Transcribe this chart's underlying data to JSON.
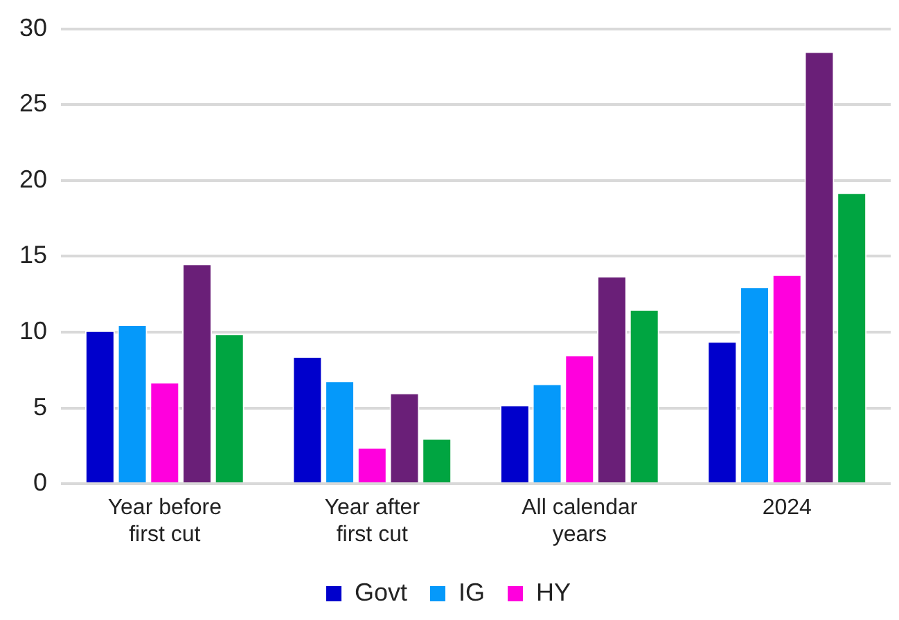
{
  "chart_data": {
    "type": "bar",
    "categories": [
      "Year before first cut",
      "Year after first cut",
      "All calendar years",
      "2024"
    ],
    "series": [
      {
        "name": "Govt",
        "color": "#0000cc",
        "values": [
          10.1,
          8.4,
          5.2,
          9.4
        ]
      },
      {
        "name": "IG",
        "color": "#0599fa",
        "values": [
          10.5,
          6.8,
          6.6,
          13.0
        ]
      },
      {
        "name": "HY",
        "color": "#ff00dd",
        "values": [
          6.7,
          2.4,
          8.5,
          13.8
        ]
      },
      {
        "color": "#6a1f78",
        "values": [
          14.5,
          6.0,
          13.7,
          28.5
        ]
      },
      {
        "color": "#00a541",
        "values": [
          9.9,
          3.0,
          11.5,
          19.2
        ]
      }
    ],
    "ylim": [
      0,
      30
    ],
    "yticks": [
      0,
      5,
      10,
      15,
      20,
      25,
      30
    ],
    "grid": "y",
    "legend": "bottom"
  }
}
